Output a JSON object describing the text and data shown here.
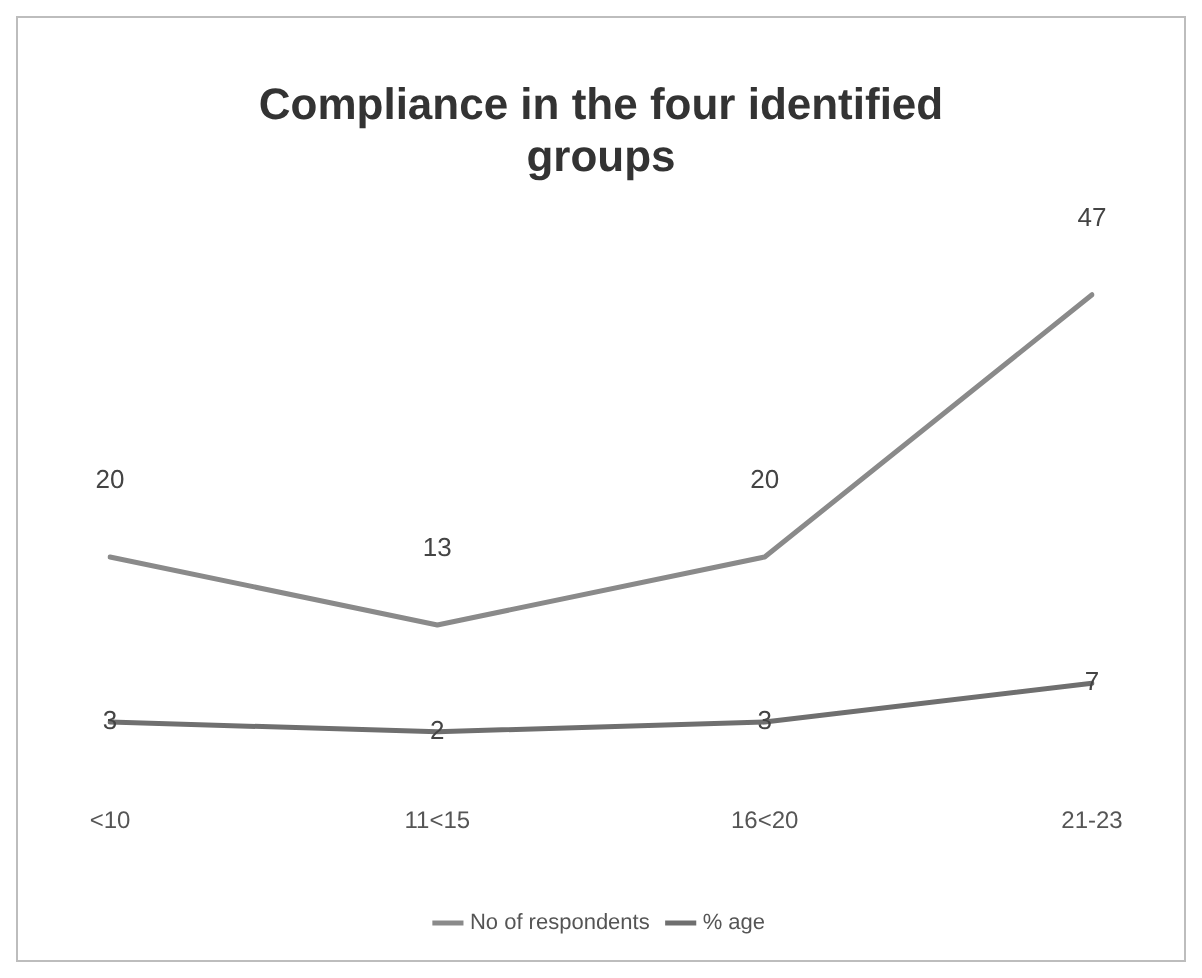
{
  "chart_data": {
    "type": "line",
    "title": "Compliance in the four identified groups",
    "categories": [
      "<10",
      "11<15",
      "16<20",
      "21-23"
    ],
    "series": [
      {
        "name": "No of respondents",
        "color": "#8a8a8a",
        "values": [
          20,
          13,
          20,
          47
        ]
      },
      {
        "name": "% age",
        "color": "#6f6f6f",
        "values": [
          3,
          2,
          3,
          7
        ]
      }
    ],
    "data_labels": true,
    "legend": "bottom",
    "grid": false,
    "tick_labels": "x",
    "marker": "none",
    "line_style": "solid"
  }
}
